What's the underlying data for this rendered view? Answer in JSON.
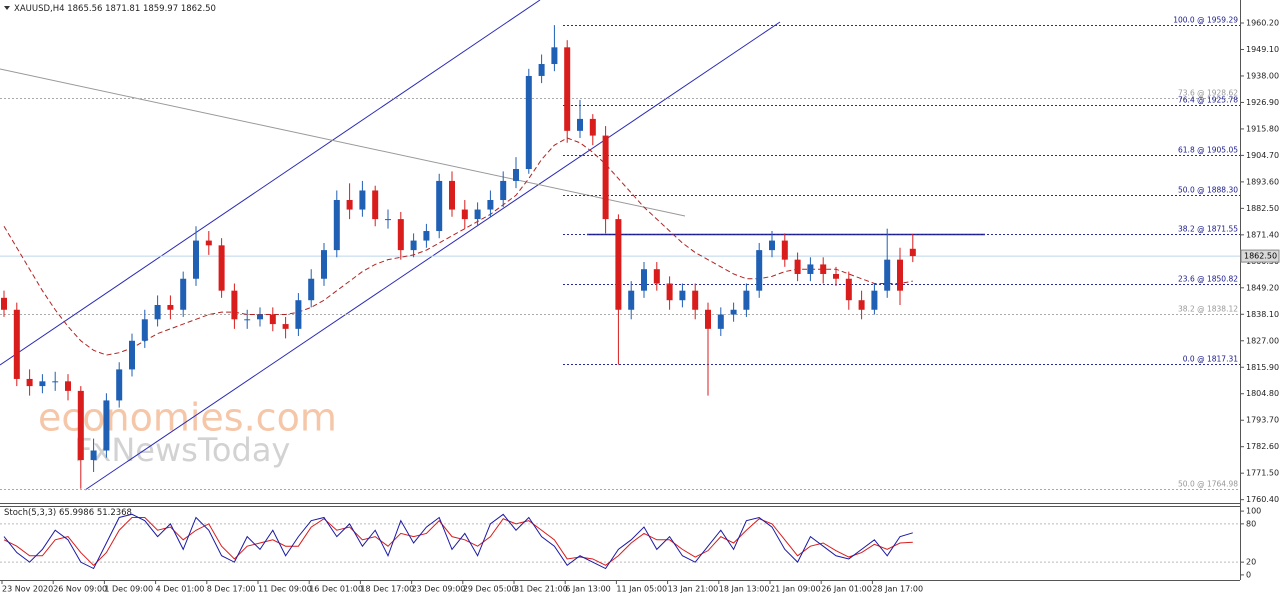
{
  "chart_data": [
    {
      "type": "candlestick",
      "symbol_label": "XAUUSD,H4",
      "categories": [
        "23 Nov 2020",
        null,
        null,
        null,
        "26 Nov 09:00",
        null,
        null,
        null,
        "1 Dec 09:00",
        null,
        null,
        null,
        "4 Dec 01:00",
        null,
        null,
        null,
        "8 Dec 17:00",
        null,
        null,
        null,
        "11 Dec 09:00",
        null,
        null,
        null,
        "16 Dec 01:00",
        null,
        null,
        null,
        "18 Dec 17:00",
        null,
        null,
        null,
        "23 Dec 09:00",
        null,
        null,
        null,
        "29 Dec 05:00",
        null,
        null,
        null,
        "31 Dec 21:00",
        null,
        null,
        null,
        "6 Jan 13:00",
        null,
        null,
        null,
        "11 Jan 05:00",
        null,
        null,
        null,
        "13 Jan 21:00",
        null,
        null,
        null,
        "18 Jan 13:00",
        null,
        null,
        null,
        "21 Jan 09:00",
        null,
        null,
        null,
        "26 Jan 01:00",
        null,
        null,
        null,
        "28 Jan 17:00",
        null,
        null,
        null
      ],
      "open": [
        1845,
        1840,
        1811,
        1808,
        1810,
        1810,
        1806,
        1777,
        1781,
        1802,
        1815,
        1827,
        1836,
        1842,
        1840,
        1853,
        1869,
        1867,
        1848,
        1836,
        1836,
        1838,
        1834,
        1832,
        1844,
        1853,
        1865,
        1886,
        1882,
        1890,
        1878,
        1878,
        1865,
        1869,
        1873,
        1894,
        1882,
        1878,
        1882,
        1886,
        1894,
        1899,
        1938,
        1943,
        1950,
        1915,
        1920,
        1913,
        1878,
        1840,
        1848,
        1857,
        1851,
        1844,
        1848,
        1840,
        1832,
        1838,
        1840,
        1848,
        1865,
        1869,
        1861,
        1855,
        1859,
        1855,
        1853,
        1844,
        1840,
        1848,
        1861,
        1865.56
      ],
      "high": [
        1848,
        1843,
        1815,
        1813,
        1814,
        1813,
        1808,
        1786,
        1805,
        1818,
        1830,
        1840,
        1846,
        1846,
        1856,
        1875,
        1873,
        1870,
        1851,
        1840,
        1841,
        1841,
        1837,
        1847,
        1857,
        1868,
        1890,
        1893,
        1894,
        1892,
        1882,
        1881,
        1872,
        1876,
        1897,
        1898,
        1886,
        1885,
        1890,
        1898,
        1904,
        1941,
        1947,
        1959.3,
        1953,
        1928,
        1922,
        1917,
        1880,
        1852,
        1860,
        1860,
        1854,
        1851,
        1851,
        1843,
        1841,
        1843,
        1851,
        1868,
        1873,
        1872,
        1864,
        1862,
        1862,
        1858,
        1856,
        1848,
        1851,
        1874,
        1866,
        1871.81
      ],
      "low": [
        1837,
        1808,
        1804,
        1805,
        1806,
        1802,
        1765,
        1772,
        1778,
        1799,
        1812,
        1824,
        1833,
        1836,
        1837,
        1850,
        1863,
        1845,
        1832,
        1832,
        1833,
        1831,
        1828,
        1829,
        1841,
        1850,
        1862,
        1878,
        1879,
        1875,
        1874,
        1861,
        1862,
        1866,
        1870,
        1879,
        1874,
        1875,
        1879,
        1883,
        1891,
        1897,
        1935,
        1940,
        1910,
        1912,
        1909,
        1872,
        1817,
        1836,
        1845,
        1848,
        1840,
        1841,
        1836,
        1804,
        1829,
        1835,
        1837,
        1845,
        1862,
        1858,
        1852,
        1852,
        1851,
        1850,
        1840,
        1836,
        1838,
        1845,
        1842,
        1859.97
      ],
      "close": [
        1840,
        1811,
        1808,
        1810,
        1810,
        1806,
        1777,
        1781,
        1802,
        1815,
        1827,
        1836,
        1842,
        1840,
        1853,
        1869,
        1867,
        1848,
        1836,
        1836,
        1838,
        1834,
        1832,
        1844,
        1853,
        1865,
        1886,
        1882,
        1890,
        1878,
        1878,
        1865,
        1869,
        1873,
        1894,
        1882,
        1878,
        1882,
        1886,
        1894,
        1899,
        1938,
        1943,
        1950,
        1915,
        1920,
        1913,
        1878,
        1840,
        1848,
        1857,
        1851,
        1844,
        1848,
        1840,
        1832,
        1838,
        1840,
        1848,
        1865,
        1869,
        1861,
        1855,
        1859,
        1855,
        1853,
        1844,
        1840,
        1848,
        1861,
        1848,
        1862.5
      ],
      "moving_average": [
        1875,
        1866,
        1857,
        1848,
        1840,
        1833,
        1827,
        1823,
        1821,
        1822,
        1824,
        1827,
        1830,
        1832,
        1834,
        1836,
        1838,
        1839,
        1839,
        1838,
        1838,
        1838,
        1838,
        1839,
        1841,
        1844,
        1848,
        1852,
        1856,
        1859,
        1861,
        1862,
        1863,
        1865,
        1868,
        1871,
        1874,
        1877,
        1880,
        1884,
        1888,
        1895,
        1903,
        1909,
        1912,
        1910,
        1906,
        1901,
        1895,
        1889,
        1883,
        1878,
        1873,
        1868,
        1864,
        1861,
        1858,
        1855,
        1853,
        1853,
        1854,
        1856,
        1857,
        1857,
        1857,
        1857,
        1855,
        1853,
        1851,
        1851,
        1851,
        1852
      ],
      "up_color": "#1f5fb4",
      "down_color": "#d91c1c",
      "ma_color": "#b22222",
      "ylim": [
        1759,
        1969
      ],
      "yticks": [
        {
          "value": 1760.4,
          "label": "1760.40"
        },
        {
          "value": 1771.5,
          "label": "1771.50"
        },
        {
          "value": 1782.6,
          "label": "1782.60"
        },
        {
          "value": 1793.7,
          "label": "1793.70"
        },
        {
          "value": 1804.8,
          "label": "1804.80"
        },
        {
          "value": 1815.9,
          "label": "1815.90"
        },
        {
          "value": 1827,
          "label": "1827.00"
        },
        {
          "value": 1838.1,
          "label": "1838.10"
        },
        {
          "value": 1849.2,
          "label": "1849.20"
        },
        {
          "value": 1860.3,
          "label": "1860.30"
        },
        {
          "value": 1871.4,
          "label": "1871.40"
        },
        {
          "value": 1882.5,
          "label": "1882.50"
        },
        {
          "value": 1893.6,
          "label": "1893.60"
        },
        {
          "value": 1904.7,
          "label": "1904.70"
        },
        {
          "value": 1915.8,
          "label": "1915.80"
        },
        {
          "value": 1926.9,
          "label": "1926.90"
        },
        {
          "value": 1938,
          "label": "1938.00"
        },
        {
          "value": 1949.1,
          "label": "1949.10"
        },
        {
          "value": 1960.2,
          "label": "1960.20"
        }
      ],
      "last_price": {
        "value": 1862.5,
        "label": "1862.50"
      },
      "fib_levels": [
        {
          "value": 1959.29,
          "label": "100.0 @ 1959.29",
          "style": "blue"
        },
        {
          "value": 1928.62,
          "label": "73.6 @ 1928.62",
          "style": "gray"
        },
        {
          "value": 1925.78,
          "label": "76.4 @ 1925.78",
          "style": "blue"
        },
        {
          "value": 1905.05,
          "label": "61.8 @ 1905.05",
          "style": "blue"
        },
        {
          "value": 1888.3,
          "label": "50.0 @ 1888.30",
          "style": "blue"
        },
        {
          "value": 1871.55,
          "label": "38.2 @ 1871.55",
          "style": "blue"
        },
        {
          "value": 1850.82,
          "label": "23.6 @ 1850.82",
          "style": "blue"
        },
        {
          "value": 1838.12,
          "label": "38.2 @ 1838.12",
          "style": "gray"
        },
        {
          "value": 1817.31,
          "label": "0.0 @ 1817.31",
          "style": "blue"
        },
        {
          "value": 1764.98,
          "label": "50.0 @ 1764.98",
          "style": "gray"
        }
      ],
      "watermarks": [
        "economies.com",
        "FxNewsToday"
      ]
    },
    {
      "type": "line",
      "label": "Stoch(5,3,3)",
      "series": [
        {
          "color": "#1a1aa6",
          "values": [
            60,
            35,
            20,
            40,
            70,
            55,
            20,
            10,
            50,
            90,
            95,
            85,
            60,
            80,
            40,
            90,
            70,
            30,
            20,
            60,
            40,
            70,
            30,
            60,
            85,
            90,
            60,
            80,
            45,
            70,
            30,
            85,
            50,
            75,
            90,
            40,
            65,
            30,
            80,
            95,
            70,
            90,
            60,
            45,
            15,
            30,
            20,
            10,
            40,
            55,
            75,
            40,
            60,
            30,
            20,
            45,
            70,
            40,
            85,
            90,
            75,
            40,
            20,
            60,
            45,
            30,
            25,
            40,
            55,
            30,
            60,
            65.9986
          ]
        },
        {
          "color": "#d91c1c",
          "values": [
            55,
            45,
            30,
            30,
            55,
            60,
            35,
            15,
            35,
            70,
            90,
            90,
            70,
            75,
            55,
            70,
            80,
            45,
            25,
            45,
            50,
            55,
            45,
            45,
            75,
            88,
            70,
            75,
            55,
            60,
            45,
            65,
            60,
            65,
            85,
            60,
            55,
            45,
            60,
            88,
            80,
            85,
            70,
            55,
            25,
            28,
            25,
            15,
            30,
            50,
            65,
            55,
            55,
            40,
            28,
            38,
            60,
            50,
            70,
            88,
            80,
            55,
            30,
            45,
            50,
            38,
            28,
            35,
            48,
            40,
            50,
            51.2368
          ]
        }
      ],
      "ylim": [
        -8,
        108
      ],
      "yticks": [
        0,
        20,
        80,
        100
      ],
      "levels": [
        20,
        80
      ]
    }
  ]
}
